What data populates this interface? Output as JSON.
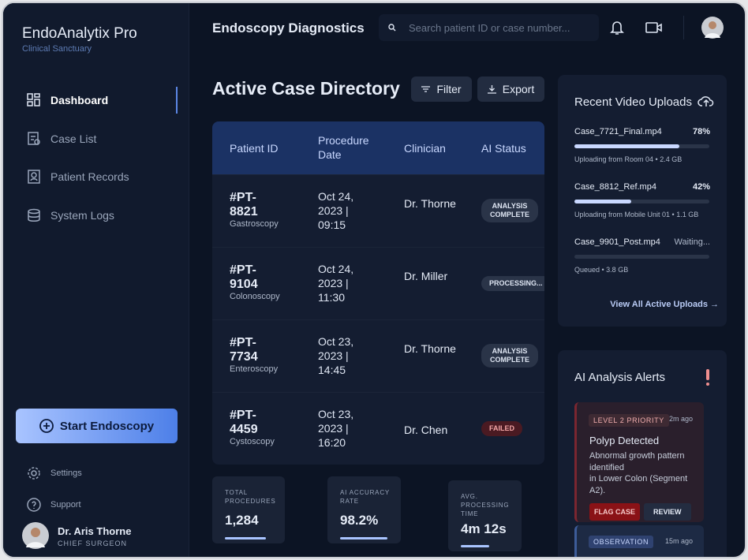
{
  "sidebar": {
    "brand": "EndoAnalytix Pro",
    "subtitle": "Clinical Sanctuary",
    "nav": [
      "Dashboard",
      "Case List",
      "Patient Records",
      "System Logs"
    ],
    "cta": "Start Endoscopy",
    "settings": "Settings",
    "support": "Support",
    "user": {
      "name": "Dr. Aris Thorne",
      "role": "CHIEF SURGEON"
    }
  },
  "header": {
    "title": "Endoscopy Diagnostics",
    "search_placeholder": "Search patient ID or case number..."
  },
  "directory": {
    "title": "Active Case Directory",
    "filter": "Filter",
    "export": "Export",
    "columns": [
      "Patient ID",
      "Procedure Date",
      "Clinician",
      "AI Status"
    ],
    "rows": [
      {
        "id": "#PT-8821",
        "procedure": "Gastroscopy",
        "date": "Oct 24, 2023 | 09:15",
        "clinician": "Dr. Thorne",
        "status": "ANALYSIS COMPLETE"
      },
      {
        "id": "#PT-9104",
        "procedure": "Colonoscopy",
        "date": "Oct 24, 2023 | 11:30",
        "clinician": "Dr. Miller",
        "status": "PROCESSING..."
      },
      {
        "id": "#PT-7734",
        "procedure": "Enteroscopy",
        "date": "Oct 23, 2023 | 14:45",
        "clinician": "Dr. Thorne",
        "status": "ANALYSIS COMPLETE"
      },
      {
        "id": "#PT-4459",
        "procedure": "Cystoscopy",
        "date": "Oct 23, 2023 | 16:20",
        "clinician": "Dr. Chen",
        "status": "FAILED"
      }
    ]
  },
  "stats": [
    {
      "label": "TOTAL PROCEDURES",
      "value": "1,284"
    },
    {
      "label": "AI ACCURACY RATE",
      "value": "98.2%"
    },
    {
      "label": "AVG. PROCESSING TIME",
      "value": "4m 12s"
    }
  ],
  "uploads": {
    "title": "Recent Video Uploads",
    "items": [
      {
        "file": "Case_7721_Final.mp4",
        "progress": 78,
        "progress_label": "78%",
        "detail": "Uploading from Room 04 • 2.4 GB"
      },
      {
        "file": "Case_8812_Ref.mp4",
        "progress": 42,
        "progress_label": "42%",
        "detail": "Uploading from Mobile Unit 01 • 1.1 GB"
      },
      {
        "file": "Case_9901_Post.mp4",
        "progress_label": "Waiting...",
        "detail": "Queued • 3.8 GB"
      }
    ],
    "view_all": "View All Active Uploads →"
  },
  "alerts": {
    "title": "AI Analysis Alerts",
    "items": [
      {
        "tag": "LEVEL 2 PRIORITY",
        "time": "2m ago",
        "title": "Polyp Detected",
        "body": "Abnormal growth pattern identified\nin Lower Colon (Segment A2).",
        "actions": [
          "FLAG CASE",
          "REVIEW"
        ]
      },
      {
        "tag": "OBSERVATION",
        "time": "15m ago"
      }
    ]
  }
}
